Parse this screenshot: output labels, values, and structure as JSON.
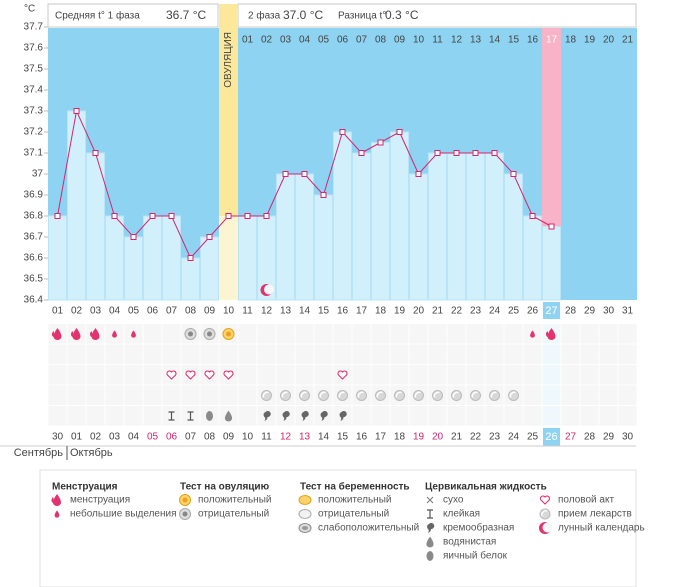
{
  "header": {
    "unit": "°C",
    "phase1_label": "Средняя t° 1 фаза",
    "phase1_value": "36.7 °C",
    "phase2_label": "2 фаза",
    "phase2_value": "37.0 °C",
    "diff_label": "Разница t°",
    "diff_value": "0.3 °C"
  },
  "chart_data": {
    "type": "line",
    "categories": [
      "01",
      "02",
      "03",
      "04",
      "05",
      "06",
      "07",
      "08",
      "09",
      "10",
      "11",
      "12",
      "13",
      "14",
      "15",
      "16",
      "17",
      "18",
      "19",
      "20",
      "21",
      "22",
      "23",
      "24",
      "25",
      "26",
      "27",
      "28",
      "29",
      "30",
      "31"
    ],
    "values": [
      36.8,
      37.3,
      37.1,
      36.8,
      36.7,
      36.8,
      36.8,
      36.6,
      36.7,
      36.8,
      36.8,
      36.8,
      37.0,
      37.0,
      36.9,
      37.2,
      37.1,
      37.15,
      37.2,
      37.0,
      37.1,
      37.1,
      37.1,
      37.1,
      37.0,
      36.8,
      36.75,
      null,
      null,
      null,
      null
    ],
    "color": "#d6246e",
    "bar_color": "#d2effc",
    "background": "#8ed3f2",
    "ylim": [
      36.4,
      37.7
    ],
    "yticks": [
      36.4,
      36.5,
      36.6,
      36.7,
      36.8,
      36.9,
      37,
      37.1,
      37.2,
      37.3,
      37.4,
      37.5,
      37.6,
      37.7
    ],
    "ovulation_index": 9,
    "ovulation_label": "ОВУЛЯЦИЯ",
    "today_index": 26,
    "moon_index": 11,
    "phase2_days": [
      "01",
      "02",
      "03",
      "04",
      "05",
      "06",
      "07",
      "08",
      "09",
      "10",
      "11",
      "12",
      "13",
      "14",
      "15",
      "16",
      "17",
      "18",
      "19",
      "20",
      "21"
    ],
    "dates": [
      "30",
      "01",
      "02",
      "03",
      "04",
      "05",
      "06",
      "07",
      "08",
      "09",
      "10",
      "11",
      "12",
      "13",
      "14",
      "15",
      "16",
      "17",
      "18",
      "19",
      "20",
      "21",
      "22",
      "23",
      "24",
      "25",
      "26",
      "27",
      "28",
      "29",
      "30"
    ],
    "weekend": [
      false,
      false,
      false,
      false,
      false,
      true,
      true,
      false,
      false,
      false,
      false,
      false,
      true,
      true,
      false,
      false,
      false,
      false,
      false,
      true,
      true,
      false,
      false,
      false,
      false,
      false,
      true,
      true,
      false,
      false,
      false
    ],
    "months": [
      "Сентябрь",
      "Октябрь"
    ],
    "icon_rows": [
      [
        "drop_big",
        "drop_big",
        "drop_big",
        "drop_small",
        "drop_small",
        null,
        null,
        "ov_neg",
        "ov_neg",
        "ov_pos",
        null,
        null,
        null,
        null,
        null,
        null,
        null,
        null,
        null,
        null,
        null,
        null,
        null,
        null,
        null,
        "drop_small",
        "drop_big",
        null,
        null,
        null,
        null
      ],
      [
        null,
        null,
        null,
        null,
        null,
        null,
        null,
        null,
        null,
        null,
        null,
        null,
        null,
        null,
        null,
        null,
        null,
        null,
        null,
        null,
        null,
        null,
        null,
        null,
        null,
        null,
        null,
        null,
        null,
        null,
        null
      ],
      [
        null,
        null,
        null,
        null,
        null,
        null,
        "heart",
        "heart",
        "heart",
        "heart",
        null,
        null,
        null,
        null,
        null,
        "heart",
        null,
        null,
        null,
        null,
        null,
        null,
        null,
        null,
        null,
        null,
        null,
        null,
        null,
        null,
        null
      ],
      [
        null,
        null,
        null,
        null,
        null,
        null,
        null,
        null,
        null,
        null,
        null,
        "pill",
        "pill",
        "pill",
        "pill",
        "pill",
        "pill",
        "pill",
        "pill",
        "pill",
        "pill",
        "pill",
        "pill",
        "pill",
        "pill",
        null,
        null,
        null,
        null,
        null,
        null
      ],
      [
        null,
        null,
        null,
        null,
        null,
        null,
        "sticky",
        "sticky",
        "eggwhite",
        "watery",
        null,
        "creamy",
        "creamy",
        "creamy",
        "creamy",
        "creamy",
        null,
        null,
        null,
        null,
        null,
        null,
        null,
        null,
        null,
        null,
        null,
        null,
        null,
        null,
        null
      ]
    ]
  },
  "legend": [
    {
      "title": "Менструация",
      "items": [
        {
          "label": "менструация",
          "icon": "drop_big"
        },
        {
          "label": "небольшие выделения",
          "icon": "drop_small"
        }
      ]
    },
    {
      "title": "Тест на овуляцию",
      "items": [
        {
          "label": "положительный",
          "icon": "ov_pos"
        },
        {
          "label": "отрицательный",
          "icon": "ov_neg"
        }
      ]
    },
    {
      "title": "Тест на беременность",
      "items": [
        {
          "label": "положительный",
          "icon": "preg_pos"
        },
        {
          "label": "отрицательный",
          "icon": "preg_neg"
        },
        {
          "label": "слабоположительный",
          "icon": "preg_weak"
        }
      ]
    },
    {
      "title": "Цервикальная жидкость",
      "items": [
        {
          "label": "сухо",
          "icon": "dry"
        },
        {
          "label": "клейкая",
          "icon": "sticky"
        },
        {
          "label": "кремообразная",
          "icon": "creamy"
        },
        {
          "label": "водянистая",
          "icon": "watery"
        },
        {
          "label": "яичный белок",
          "icon": "eggwhite"
        }
      ]
    },
    {
      "items": [
        {
          "label": "половой акт",
          "icon": "heart"
        },
        {
          "label": "прием лекарств",
          "icon": "pill"
        },
        {
          "label": "лунный календарь",
          "icon": "moon"
        }
      ]
    }
  ]
}
